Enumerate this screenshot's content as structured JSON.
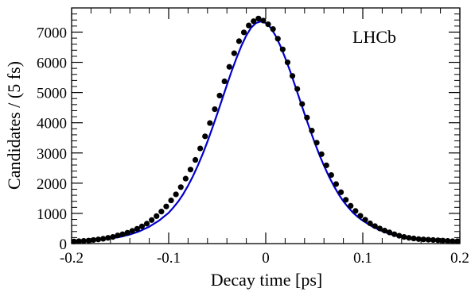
{
  "chart_data": {
    "type": "scatter",
    "title": "",
    "xlabel": "Decay time [ps]",
    "ylabel": "Candidates / (5 fs)",
    "annotation": "LHCb",
    "legend": "none",
    "grid": false,
    "xlim": [
      -0.2,
      0.2
    ],
    "ylim": [
      0,
      7800
    ],
    "xticks": [
      -0.2,
      -0.1,
      0,
      0.1,
      0.2
    ],
    "xtick_labels": [
      "-0.2",
      "-0.1",
      "0",
      "0.1",
      "0.2"
    ],
    "yticks": [
      0,
      1000,
      2000,
      3000,
      4000,
      5000,
      6000,
      7000
    ],
    "ytick_labels": [
      "0",
      "1000",
      "2000",
      "3000",
      "4000",
      "5000",
      "6000",
      "7000"
    ],
    "colors": {
      "data": "#000000",
      "fit": "#0000cc"
    },
    "series": [
      {
        "kind": "points",
        "x": [
          -0.1975,
          -0.1925,
          -0.1875,
          -0.1825,
          -0.1775,
          -0.1725,
          -0.1675,
          -0.1625,
          -0.1575,
          -0.1525,
          -0.1475,
          -0.1425,
          -0.1375,
          -0.1325,
          -0.1275,
          -0.1225,
          -0.1175,
          -0.1125,
          -0.1075,
          -0.1025,
          -0.0975,
          -0.0925,
          -0.0875,
          -0.0825,
          -0.0775,
          -0.0725,
          -0.0675,
          -0.0625,
          -0.0575,
          -0.0525,
          -0.0475,
          -0.0425,
          -0.0375,
          -0.0325,
          -0.0275,
          -0.0225,
          -0.0175,
          -0.0125,
          -0.0075,
          -0.0025,
          0.0025,
          0.0075,
          0.0125,
          0.0175,
          0.0225,
          0.0275,
          0.0325,
          0.0375,
          0.0425,
          0.0475,
          0.0525,
          0.0575,
          0.0625,
          0.0675,
          0.0725,
          0.0775,
          0.0825,
          0.0875,
          0.0925,
          0.0975,
          0.1025,
          0.1075,
          0.1125,
          0.1175,
          0.1225,
          0.1275,
          0.1325,
          0.1375,
          0.1425,
          0.1475,
          0.1525,
          0.1575,
          0.1625,
          0.1675,
          0.1725,
          0.1775,
          0.1825,
          0.1875,
          0.1925,
          0.1975
        ],
        "y": [
          70,
          80,
          90,
          100,
          120,
          140,
          160,
          190,
          220,
          270,
          310,
          360,
          420,
          490,
          570,
          660,
          780,
          910,
          1060,
          1230,
          1430,
          1630,
          1870,
          2150,
          2450,
          2770,
          3150,
          3550,
          3990,
          4450,
          4900,
          5370,
          5850,
          6300,
          6700,
          6990,
          7220,
          7360,
          7450,
          7380,
          7260,
          7100,
          6780,
          6430,
          6000,
          5550,
          5120,
          4620,
          4170,
          3740,
          3340,
          2960,
          2590,
          2270,
          1970,
          1700,
          1450,
          1250,
          1080,
          920,
          790,
          670,
          580,
          500,
          430,
          370,
          310,
          260,
          220,
          190,
          170,
          150,
          140,
          130,
          120,
          110,
          100,
          90,
          80,
          80
        ]
      },
      {
        "kind": "fit-curve",
        "x": [
          -0.2,
          -0.19,
          -0.18,
          -0.17,
          -0.16,
          -0.15,
          -0.14,
          -0.13,
          -0.12,
          -0.11,
          -0.1,
          -0.095,
          -0.09,
          -0.085,
          -0.08,
          -0.075,
          -0.07,
          -0.065,
          -0.06,
          -0.055,
          -0.05,
          -0.045,
          -0.04,
          -0.035,
          -0.03,
          -0.025,
          -0.02,
          -0.015,
          -0.01,
          -0.005,
          0,
          0.005,
          0.01,
          0.015,
          0.02,
          0.025,
          0.03,
          0.035,
          0.04,
          0.045,
          0.05,
          0.055,
          0.06,
          0.065,
          0.07,
          0.075,
          0.08,
          0.085,
          0.09,
          0.095,
          0.1,
          0.11,
          0.12,
          0.13,
          0.14,
          0.15,
          0.16,
          0.17,
          0.18,
          0.19,
          0.2
        ],
        "y": [
          60,
          80,
          100,
          130,
          170,
          220,
          300,
          410,
          560,
          760,
          1020,
          1200,
          1400,
          1640,
          1920,
          2230,
          2580,
          2960,
          3380,
          3830,
          4290,
          4770,
          5250,
          5720,
          6150,
          6550,
          6890,
          7150,
          7300,
          7350,
          7300,
          7150,
          6890,
          6550,
          6150,
          5720,
          5250,
          4770,
          4290,
          3830,
          3380,
          2960,
          2580,
          2230,
          1920,
          1640,
          1400,
          1200,
          1020,
          880,
          760,
          560,
          410,
          300,
          220,
          170,
          130,
          100,
          80,
          70,
          60
        ]
      }
    ]
  }
}
